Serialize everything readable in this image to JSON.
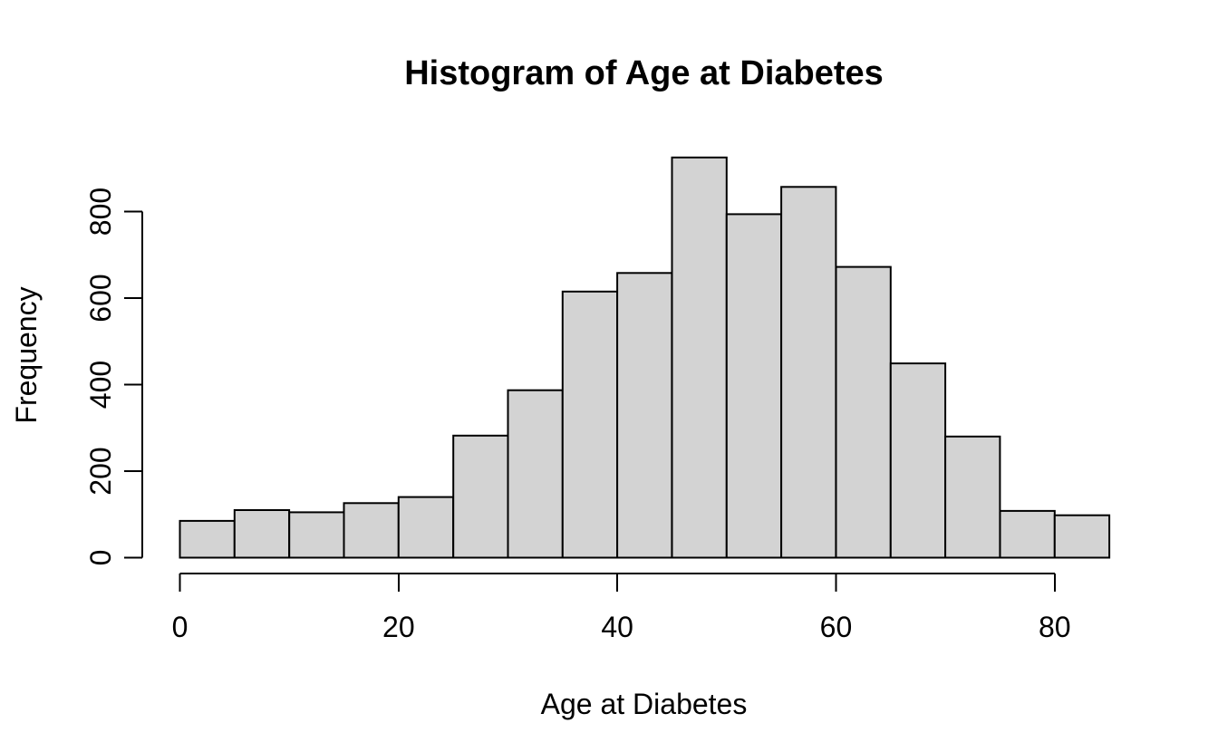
{
  "figure": {
    "background": "#ffffff",
    "text_color": "#000000"
  },
  "chart_data": {
    "type": "bar",
    "subtype": "histogram",
    "title": "Histogram of Age at Diabetes",
    "xlabel": "Age at Diabetes",
    "ylabel": "Frequency",
    "bin_edges": [
      0,
      5,
      10,
      15,
      20,
      25,
      30,
      35,
      40,
      45,
      50,
      55,
      60,
      65,
      70,
      75,
      80,
      85
    ],
    "counts": [
      85,
      110,
      105,
      126,
      140,
      282,
      387,
      615,
      658,
      925,
      794,
      857,
      672,
      449,
      280,
      108,
      98
    ],
    "x_ticks": [
      0,
      20,
      40,
      60,
      80
    ],
    "y_ticks": [
      0,
      200,
      400,
      600,
      800
    ],
    "xlim": [
      0,
      85
    ],
    "ylim": [
      0,
      925
    ],
    "grid": false,
    "legend": null,
    "bar_fill": "#d3d3d3",
    "bar_stroke": "#000000"
  }
}
